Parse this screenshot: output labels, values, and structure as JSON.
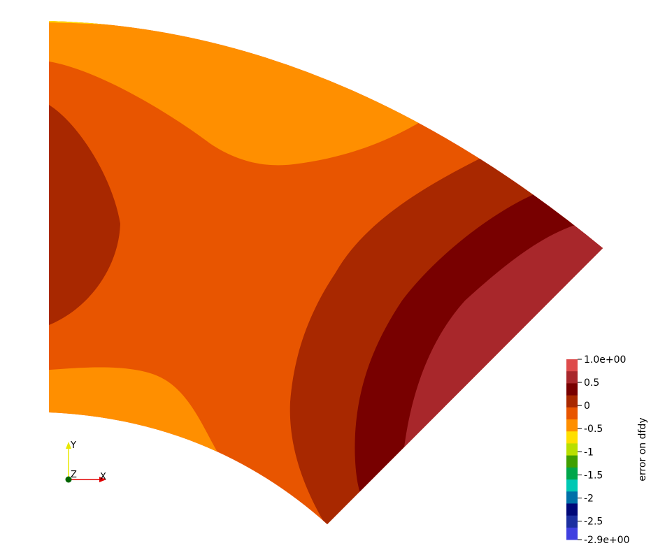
{
  "chart_data": {
    "type": "heatmap",
    "title": "",
    "field": "error on dfdy",
    "colorbar": {
      "title": "error on dfdy",
      "range": [
        -2.9,
        1.0
      ],
      "max_label": "1.0e+00",
      "min_label": "-2.9e+00",
      "tick_labels": [
        "0.5",
        "0",
        "-0.5",
        "-1",
        "-1.5",
        "-2",
        "-2.5"
      ],
      "bands": [
        {
          "color": "#de4b4b"
        },
        {
          "color": "#a8272b"
        },
        {
          "color": "#780000"
        },
        {
          "color": "#a82800"
        },
        {
          "color": "#e85500"
        },
        {
          "color": "#ff8f00"
        },
        {
          "color": "#ffdf00"
        },
        {
          "color": "#b8df00"
        },
        {
          "color": "#3f9f00"
        },
        {
          "color": "#00a64a"
        },
        {
          "color": "#00c8b4"
        },
        {
          "color": "#0070a8"
        },
        {
          "color": "#000878"
        },
        {
          "color": "#1c2fa0"
        },
        {
          "color": "#4040e0"
        }
      ]
    },
    "regions": [
      {
        "level": "-0.5",
        "color": "#ffdf00"
      },
      {
        "level": "-0.25",
        "color": "#ff8f00"
      },
      {
        "level": "0",
        "color": "#e85500"
      },
      {
        "level": "0.25",
        "color": "#a82800"
      },
      {
        "level": "0.5",
        "color": "#780000"
      },
      {
        "level": "0.75",
        "color": "#a8272b"
      }
    ]
  },
  "axes_triad": {
    "y_label": "Y",
    "z_label": "Z",
    "x_label": "X",
    "y_color": "#e8e800",
    "x_color": "#e00000",
    "z_color": "#006400"
  }
}
